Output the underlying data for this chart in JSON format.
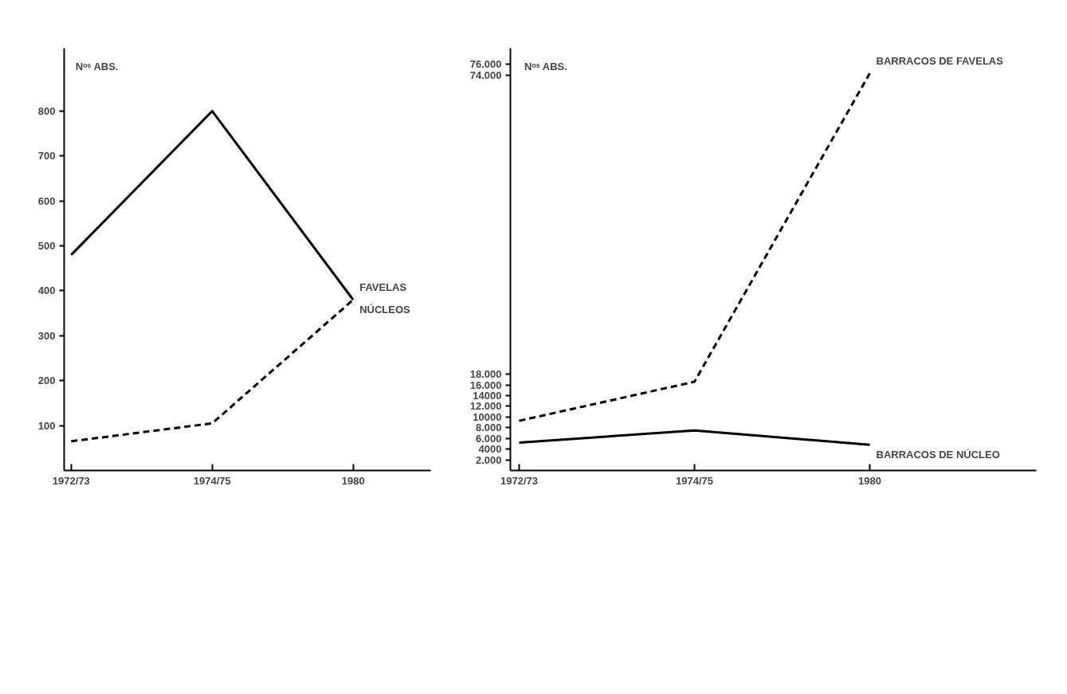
{
  "chart_data": [
    {
      "type": "line",
      "ylabel": "Nᵒˢ ABS.",
      "categories": [
        "1972/73",
        "1974/75",
        "1980"
      ],
      "ylim": [
        0,
        940
      ],
      "yticks": [
        100,
        200,
        300,
        400,
        500,
        600,
        700,
        800
      ],
      "grid": false,
      "marker": "none",
      "series": [
        {
          "name": "FAVELAS",
          "color": "#000000",
          "line_style": "dashed",
          "values": [
            65,
            105,
            380
          ]
        },
        {
          "name": "NÚCLEOS",
          "color": "#000000",
          "line_style": "solid",
          "values": [
            480,
            800,
            380
          ]
        }
      ]
    },
    {
      "type": "line",
      "ylabel": "Nᵒˢ ABS.",
      "categories": [
        "1972/73",
        "1974/75",
        "1980"
      ],
      "ylim": [
        0,
        79000
      ],
      "yticks": [
        {
          "value": 2000,
          "label": "2.000"
        },
        {
          "value": 4000,
          "label": "4000"
        },
        {
          "value": 6000,
          "label": "6.000"
        },
        {
          "value": 8000,
          "label": "8.000"
        },
        {
          "value": 10000,
          "label": "10000"
        },
        {
          "value": 12000,
          "label": "12.000"
        },
        {
          "value": 14000,
          "label": "14000"
        },
        {
          "value": 16000,
          "label": "16.000"
        },
        {
          "value": 18000,
          "label": "18.000"
        },
        {
          "value": 74000,
          "label": "74.000"
        },
        {
          "value": 76000,
          "label": "76.000"
        }
      ],
      "grid": false,
      "marker": "none",
      "series": [
        {
          "name": "BARRACOS DE FAVELAS",
          "color": "#000000",
          "line_style": "dashed",
          "values": [
            9300,
            16600,
            74300
          ]
        },
        {
          "name": "BARRACOS DE NÚCLEO",
          "color": "#000000",
          "line_style": "solid",
          "values": [
            5200,
            7500,
            4800
          ]
        }
      ]
    }
  ]
}
